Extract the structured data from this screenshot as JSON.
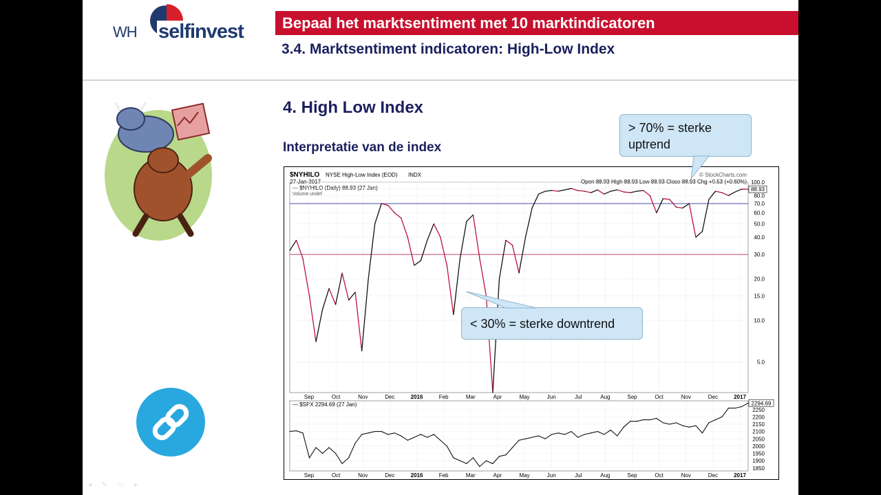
{
  "logo": {
    "prefix": "WH",
    "name": "selfinvest"
  },
  "header": {
    "title": "Bepaal het marktsentiment met 10 marktindicatoren",
    "subtitle": "3.4. Marktsentiment indicatoren: High-Low Index"
  },
  "section": {
    "heading": "4. High Low Index",
    "subheading": "Interpretatie van de index"
  },
  "callouts": {
    "upper": "> 70% = sterke uptrend",
    "lower": "< 30% = sterke downtrend"
  },
  "colors": {
    "title_bar": "#c8102e",
    "heading": "#1a1f5c",
    "callout_bg": "#cfe6f7",
    "link_button": "#29a8e0"
  },
  "icons": {
    "link": "link-icon",
    "cartoon": "bull-bear-illustration"
  },
  "chart_data": [
    {
      "type": "line",
      "title": "$NYHILO",
      "source": "NYSE High-Low Index (EOD)",
      "exchange": "INDX",
      "date": "27-Jan-2017",
      "credit": "© StockCharts.com",
      "legend": "— $NYHILO (Daily) 88.93 (27 Jan)",
      "legend2": "Volume undef",
      "ohlc": {
        "open": "88.93",
        "high": "88.93",
        "low": "88.93",
        "close": "88.93",
        "chg": "+0.53 (+0.60%)"
      },
      "last_value": "88.93",
      "scale": "log",
      "ylim": [
        3,
        100
      ],
      "yticks": [
        "100.0",
        "90.0",
        "80.0",
        "70.0",
        "60.0",
        "50.0",
        "40.0",
        "30.0",
        "20.0",
        "15.0",
        "10.0",
        "5.0"
      ],
      "ytick_values": [
        100,
        90,
        80,
        70,
        60,
        50,
        40,
        30,
        20,
        15,
        10,
        5
      ],
      "reference_lines": [
        70,
        30
      ],
      "month_ticks": [
        "Sep",
        "Oct",
        "Nov",
        "Dec",
        "2016",
        "Feb",
        "Mar",
        "Apr",
        "May",
        "Jun",
        "Jul",
        "Aug",
        "Sep",
        "Oct",
        "Nov",
        "Dec",
        "2017"
      ],
      "x": [
        0,
        1,
        2,
        3,
        4,
        5,
        6,
        7,
        8,
        9,
        10,
        11,
        12,
        13,
        14,
        15,
        16,
        17,
        18,
        19,
        20,
        21,
        22,
        23,
        24,
        25,
        26,
        27,
        28,
        29,
        30,
        31,
        32,
        33,
        34,
        35,
        36,
        37,
        38,
        39,
        40,
        41,
        42,
        43,
        44,
        45,
        46,
        47,
        48,
        49,
        50,
        51,
        52,
        53,
        54,
        55,
        56,
        57,
        58,
        59,
        60,
        61,
        62,
        63,
        64,
        65,
        66,
        67,
        68,
        69,
        70
      ],
      "series": [
        {
          "values": [
            32,
            38,
            28,
            15,
            7,
            12,
            17,
            13,
            22,
            14,
            16,
            6,
            20,
            50,
            70,
            68,
            60,
            55,
            40,
            25,
            27,
            38,
            50,
            40,
            25,
            11,
            28,
            52,
            58,
            28,
            15,
            3,
            20,
            38,
            35,
            22,
            40,
            65,
            82,
            86,
            87,
            86,
            88,
            90,
            87,
            86,
            84,
            88,
            82,
            86,
            88,
            85,
            84,
            86,
            87,
            80,
            60,
            76,
            75,
            66,
            65,
            70,
            40,
            44,
            75,
            86,
            84,
            80,
            85,
            89,
            88.93
          ]
        }
      ]
    },
    {
      "type": "line",
      "title": "$SPX",
      "legend": "— $SPX 2294.69 (27 Jan)",
      "last_value": "2294.69",
      "ylim": [
        1830,
        2310
      ],
      "yticks": [
        "2250",
        "2200",
        "2150",
        "2100",
        "2050",
        "2000",
        "1950",
        "1900",
        "1850"
      ],
      "ytick_values": [
        2250,
        2200,
        2150,
        2100,
        2050,
        2000,
        1950,
        1900,
        1850
      ],
      "month_ticks": [
        "Sep",
        "Oct",
        "Nov",
        "Dec",
        "2016",
        "Feb",
        "Mar",
        "Apr",
        "May",
        "Jun",
        "Jul",
        "Aug",
        "Sep",
        "Oct",
        "Nov",
        "Dec",
        "2017"
      ],
      "x": [
        0,
        1,
        2,
        3,
        4,
        5,
        6,
        7,
        8,
        9,
        10,
        11,
        12,
        13,
        14,
        15,
        16,
        17,
        18,
        19,
        20,
        21,
        22,
        23,
        24,
        25,
        26,
        27,
        28,
        29,
        30,
        31,
        32,
        33,
        34,
        35,
        36,
        37,
        38,
        39,
        40,
        41,
        42,
        43,
        44,
        45,
        46,
        47,
        48,
        49,
        50,
        51,
        52,
        53,
        54,
        55,
        56,
        57,
        58,
        59,
        60,
        61,
        62,
        63,
        64,
        65,
        66,
        67,
        68,
        69,
        70
      ],
      "series": [
        {
          "values": [
            2100,
            2105,
            2090,
            1920,
            1990,
            1950,
            1990,
            1950,
            1880,
            1920,
            2020,
            2080,
            2090,
            2100,
            2100,
            2080,
            2090,
            2070,
            2040,
            2060,
            2080,
            2060,
            2080,
            2040,
            2000,
            1920,
            1900,
            1880,
            1920,
            1860,
            1900,
            1880,
            1930,
            1940,
            1990,
            2040,
            2050,
            2060,
            2070,
            2050,
            2080,
            2090,
            2080,
            2100,
            2060,
            2080,
            2090,
            2100,
            2080,
            2110,
            2070,
            2130,
            2170,
            2170,
            2180,
            2180,
            2190,
            2160,
            2150,
            2160,
            2140,
            2130,
            2140,
            2090,
            2160,
            2180,
            2200,
            2260,
            2260,
            2270,
            2294.69
          ]
        }
      ]
    }
  ]
}
